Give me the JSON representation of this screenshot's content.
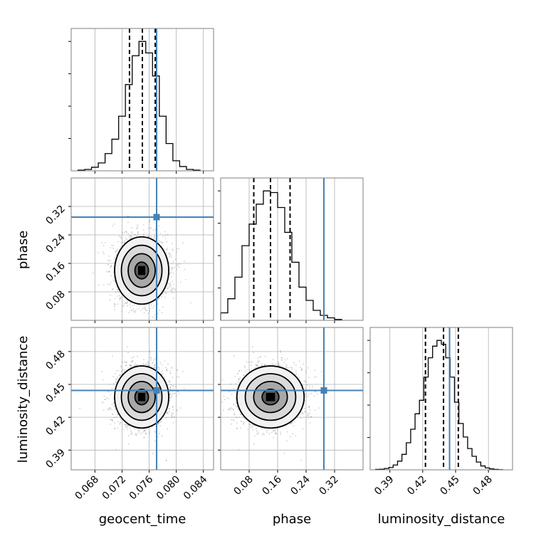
{
  "chart_data": {
    "type": "corner",
    "parameters": [
      "geocent_time",
      "phase",
      "luminosity_distance"
    ],
    "axis_labels": {
      "geocent_time": "geocent_time",
      "phase": "phase",
      "luminosity_distance": "luminosity_distance"
    },
    "grid": true,
    "ranges": {
      "geocent_time": [
        0.0645,
        0.0855
      ],
      "phase": [
        0.0,
        0.4
      ],
      "luminosity_distance": [
        0.372,
        0.502
      ]
    },
    "ticks": {
      "geocent_time": [
        0.068,
        0.072,
        0.076,
        0.08,
        0.084
      ],
      "phase": [
        0.08,
        0.16,
        0.24,
        0.32
      ],
      "luminosity_distance": [
        0.39,
        0.42,
        0.45,
        0.48
      ]
    },
    "tick_labels": {
      "geocent_time": [
        "0.068",
        "0.072",
        "0.076",
        "0.080",
        "0.084"
      ],
      "phase": [
        "0.08",
        "0.16",
        "0.24",
        "0.32"
      ],
      "luminosity_distance": [
        "0.39",
        "0.42",
        "0.45",
        "0.48"
      ]
    },
    "injection": {
      "geocent_time": 0.0771,
      "phase": 0.29,
      "luminosity_distance": 0.4445
    },
    "injection_color": "#4682b4",
    "quantiles": {
      "geocent_time": [
        0.0731,
        0.075,
        0.0769
      ],
      "phase": [
        0.093,
        0.14,
        0.195
      ],
      "luminosity_distance": [
        0.4225,
        0.439,
        0.4525
      ]
    },
    "histograms": {
      "geocent_time": {
        "edges": [
          0.0655,
          0.0665,
          0.0675,
          0.0685,
          0.0695,
          0.0705,
          0.0715,
          0.0725,
          0.0735,
          0.0745,
          0.0755,
          0.0765,
          0.0775,
          0.0785,
          0.0795,
          0.0805,
          0.0815,
          0.0825,
          0.0835
        ],
        "counts": [
          0.5,
          1.0,
          2.5,
          5.5,
          12,
          22,
          38,
          60,
          80,
          90,
          82,
          66,
          38,
          19,
          7,
          3,
          1,
          0.5
        ]
      },
      "phase": {
        "edges": [
          0.0,
          0.02,
          0.04,
          0.06,
          0.08,
          0.1,
          0.12,
          0.14,
          0.16,
          0.18,
          0.2,
          0.22,
          0.24,
          0.26,
          0.28,
          0.3,
          0.32,
          0.34
        ],
        "counts": [
          4.5,
          13,
          26,
          45,
          58,
          70,
          78,
          77,
          68,
          53,
          35,
          20,
          12,
          6,
          3,
          1.5,
          0.5
        ]
      },
      "luminosity_distance": {
        "edges": [
          0.377,
          0.381,
          0.385,
          0.389,
          0.393,
          0.397,
          0.401,
          0.405,
          0.409,
          0.413,
          0.417,
          0.421,
          0.425,
          0.429,
          0.433,
          0.437,
          0.441,
          0.445,
          0.449,
          0.453,
          0.457,
          0.461,
          0.465,
          0.469,
          0.473,
          0.477,
          0.481,
          0.485,
          0.489,
          0.493
        ],
        "counts": [
          0.2,
          0.3,
          0.7,
          1.2,
          2.5,
          4.5,
          8,
          14,
          21,
          29,
          36,
          48,
          58,
          64,
          67,
          65,
          58,
          48,
          35,
          24,
          17,
          11,
          7,
          4,
          2,
          1,
          0.5,
          0.2,
          0.1
        ]
      }
    },
    "pairs": [
      {
        "x": "geocent_time",
        "y": "phase",
        "mean": [
          0.0749,
          0.14
        ],
        "std": [
          0.0019,
          0.045
        ]
      },
      {
        "x": "geocent_time",
        "y": "luminosity_distance",
        "mean": [
          0.0749,
          0.4385
        ],
        "std": [
          0.0019,
          0.0135
        ]
      },
      {
        "x": "phase",
        "y": "luminosity_distance",
        "mean": [
          0.14,
          0.4385
        ],
        "std": [
          0.045,
          0.0135
        ]
      }
    ],
    "contour_levels_sigma": [
      0.5,
      1.0,
      1.5,
      2.0
    ]
  }
}
